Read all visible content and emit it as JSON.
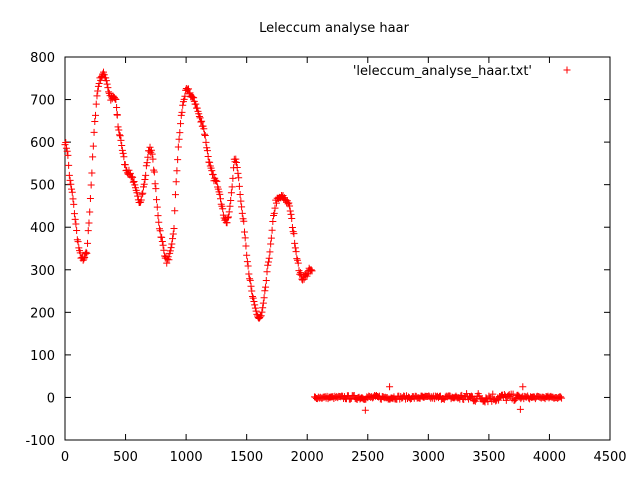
{
  "chart_data": {
    "type": "scatter",
    "title": "Leleccum analyse haar",
    "xlabel": "",
    "ylabel": "",
    "xlim": [
      0,
      4500
    ],
    "ylim": [
      -100,
      800
    ],
    "xticks": [
      0,
      500,
      1000,
      1500,
      2000,
      2500,
      3000,
      3500,
      4000,
      4500
    ],
    "yticks": [
      -100,
      0,
      100,
      200,
      300,
      400,
      500,
      600,
      700,
      800
    ],
    "grid": false,
    "legend_position": "top-right",
    "marker": "+",
    "color": "#ff0000",
    "series": [
      {
        "name": "'leleccum_analyse_haar.txt'",
        "approximation_profile": {
          "x": [
            0,
            20,
            40,
            60,
            80,
            100,
            120,
            150,
            180,
            200,
            220,
            240,
            260,
            280,
            300,
            320,
            340,
            360,
            380,
            400,
            420,
            440,
            460,
            480,
            500,
            520,
            540,
            560,
            580,
            600,
            620,
            640,
            660,
            680,
            700,
            720,
            740,
            760,
            780,
            800,
            820,
            840,
            860,
            880,
            900,
            920,
            940,
            960,
            980,
            1000,
            1020,
            1040,
            1060,
            1080,
            1100,
            1120,
            1140,
            1160,
            1180,
            1200,
            1220,
            1240,
            1260,
            1280,
            1300,
            1320,
            1340,
            1360,
            1380,
            1400,
            1420,
            1440,
            1460,
            1480,
            1500,
            1520,
            1540,
            1560,
            1580,
            1600,
            1620,
            1640,
            1660,
            1680,
            1700,
            1720,
            1740,
            1760,
            1780,
            1800,
            1820,
            1840,
            1860,
            1880,
            1900,
            1920,
            1940,
            1960,
            1980,
            2000,
            2020,
            2040
          ],
          "y": [
            600,
            580,
            510,
            480,
            430,
            380,
            340,
            320,
            340,
            420,
            520,
            620,
            700,
            740,
            755,
            760,
            750,
            720,
            700,
            705,
            700,
            630,
            610,
            570,
            540,
            530,
            525,
            515,
            490,
            470,
            460,
            480,
            510,
            560,
            590,
            570,
            520,
            450,
            400,
            370,
            340,
            320,
            330,
            350,
            400,
            520,
            600,
            660,
            700,
            720,
            720,
            710,
            700,
            690,
            670,
            650,
            640,
            610,
            570,
            540,
            520,
            510,
            500,
            480,
            440,
            420,
            410,
            440,
            500,
            560,
            550,
            500,
            440,
            400,
            340,
            290,
            250,
            220,
            200,
            185,
            190,
            220,
            270,
            320,
            360,
            420,
            460,
            465,
            470,
            470,
            465,
            460,
            440,
            400,
            360,
            320,
            290,
            280,
            285,
            290,
            300,
            295
          ]
        },
        "detail_profile": {
          "x": [
            2060,
            2200,
            2400,
            2600,
            2800,
            3000,
            3200,
            3300,
            3400,
            3500,
            3600,
            3700,
            3800,
            3900,
            4000,
            4100
          ],
          "y": [
            0,
            0,
            0,
            0,
            0,
            0,
            0,
            0,
            0,
            0,
            0,
            0,
            0,
            0,
            0,
            0
          ],
          "spread": [
            3,
            3,
            5,
            5,
            4,
            4,
            5,
            10,
            12,
            12,
            10,
            8,
            4,
            3,
            3,
            2
          ]
        },
        "outliers": {
          "x": [
            430,
            2480,
            2680,
            3780,
            3760
          ],
          "y": [
            665,
            -30,
            25,
            25,
            -28
          ]
        }
      }
    ]
  }
}
